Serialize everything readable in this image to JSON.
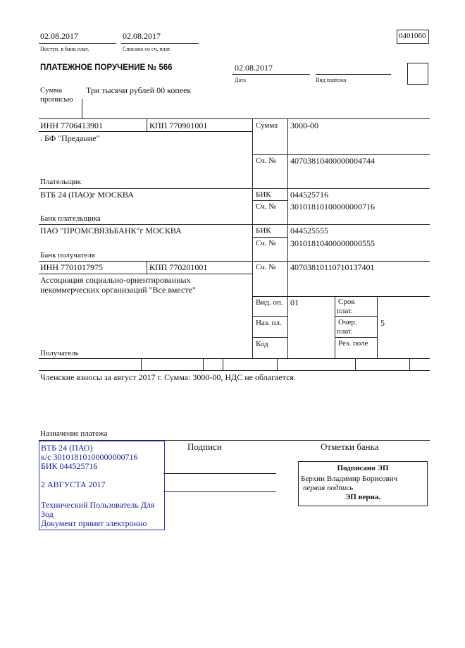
{
  "header": {
    "received_date": "02.08.2017",
    "received_label": "Поступ. в банк плат.",
    "debited_date": "02.08.2017",
    "debited_label": "Списано со сч. плат.",
    "form_code": "0401060"
  },
  "title": "ПЛАТЕЖНОЕ ПОРУЧЕНИЕ № 566",
  "date": {
    "value": "02.08.2017",
    "label": "Дата"
  },
  "payment_type": {
    "value": "",
    "label": "Вид платежа"
  },
  "amount_words": {
    "label_line1": "Сумма",
    "label_line2": "прописью",
    "value": "Три тысячи рублей 00 копеек"
  },
  "payer": {
    "inn": "ИНН 7706413901",
    "kpp": "КПП 770901001",
    "name": ". БФ \"Предание\"",
    "label": "Плательщик",
    "sum_label": "Сумма",
    "sum": "3000-00",
    "account_label": "Сч. №",
    "account": "40703810400000004744"
  },
  "payer_bank": {
    "name": "ВТБ 24 (ПАО)г МОСКВА",
    "label": "Банк плательщика",
    "bik_label": "БИК",
    "bik": "044525716",
    "account_label": "Сч. №",
    "account": "30101810100000000716"
  },
  "payee_bank": {
    "name": "ПАО \"ПРОМСВЯЗЬБАНК\"г МОСКВА",
    "label": "Банк получателя",
    "bik_label": "БИК",
    "bik": "044525555",
    "account_label": "Сч. №",
    "account": "30101810400000000555"
  },
  "payee": {
    "inn": "ИНН 7701017975",
    "kpp": "КПП 770201001",
    "name_line1": "Ассоциация социально-ориентированных",
    "name_line2": "некоммерческих организаций \"Все вместе\"",
    "label": "Получатель",
    "account_label": "Сч. №",
    "account": "40703810110710137401"
  },
  "codes": {
    "op_type_label": "Вид. оп.",
    "op_type": "01",
    "purpose_code_label": "Наз. пл.",
    "code_label": "Код",
    "term_label_1": "Срок",
    "term_label_2": "плат.",
    "priority_label_1": "Очер.",
    "priority_label_2": "плат.",
    "priority": "5",
    "reserved_label": "Рез. поле"
  },
  "purpose": {
    "text": "Членские взносы за август 2017 г. Сумма: 3000-00, НДС не облагается.",
    "label": "Назначение платежа"
  },
  "bank_stamp": {
    "line1": "ВТБ 24 (ПАО)",
    "line2": "к/с 30101810100000000716",
    "line3": "БИК 044525716",
    "date": "2 АВГУСТА 2017",
    "user_line1": "Технический Пользователь Для",
    "user_line2": "Зод",
    "accepted": "Документ принят электронно",
    "color": "#1a1a9a"
  },
  "signatures": {
    "label": "Подписи",
    "bank_marks_label": "Отметки банка"
  },
  "ep_stamp": {
    "title": "Подписано ЭП",
    "signer": "Берхин Владимир Борисович",
    "role": "первая подпись",
    "verified": "ЭП верна."
  }
}
